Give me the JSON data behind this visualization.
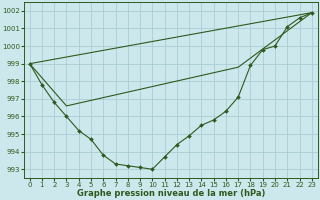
{
  "title": "Graphe pression niveau de la mer (hPa)",
  "background_color": "#cde8ec",
  "grid_color": "#aacdd4",
  "line_color": "#2d5a1e",
  "xlim": [
    -0.5,
    23.5
  ],
  "ylim": [
    992.5,
    1002.5
  ],
  "yticks": [
    993,
    994,
    995,
    996,
    997,
    998,
    999,
    1000,
    1001,
    1002
  ],
  "xticks": [
    0,
    1,
    2,
    3,
    4,
    5,
    6,
    7,
    8,
    9,
    10,
    11,
    12,
    13,
    14,
    15,
    16,
    17,
    18,
    19,
    20,
    21,
    22,
    23
  ],
  "series1": [
    999.0,
    997.8,
    996.8,
    996.0,
    995.2,
    994.7,
    993.8,
    993.3,
    993.2,
    993.1,
    993.0,
    993.7,
    994.4,
    994.9,
    995.5,
    995.8,
    996.3,
    997.1,
    998.9,
    999.8,
    1000.0,
    1001.1,
    1001.6,
    1001.9
  ],
  "series2_x": [
    0,
    23
  ],
  "series2_y": [
    999.0,
    1001.9
  ],
  "series3_x": [
    0,
    3,
    17,
    23
  ],
  "series3_y": [
    999.0,
    996.6,
    998.8,
    1001.9
  ],
  "tick_fontsize": 5.0,
  "xlabel_fontsize": 6.0
}
